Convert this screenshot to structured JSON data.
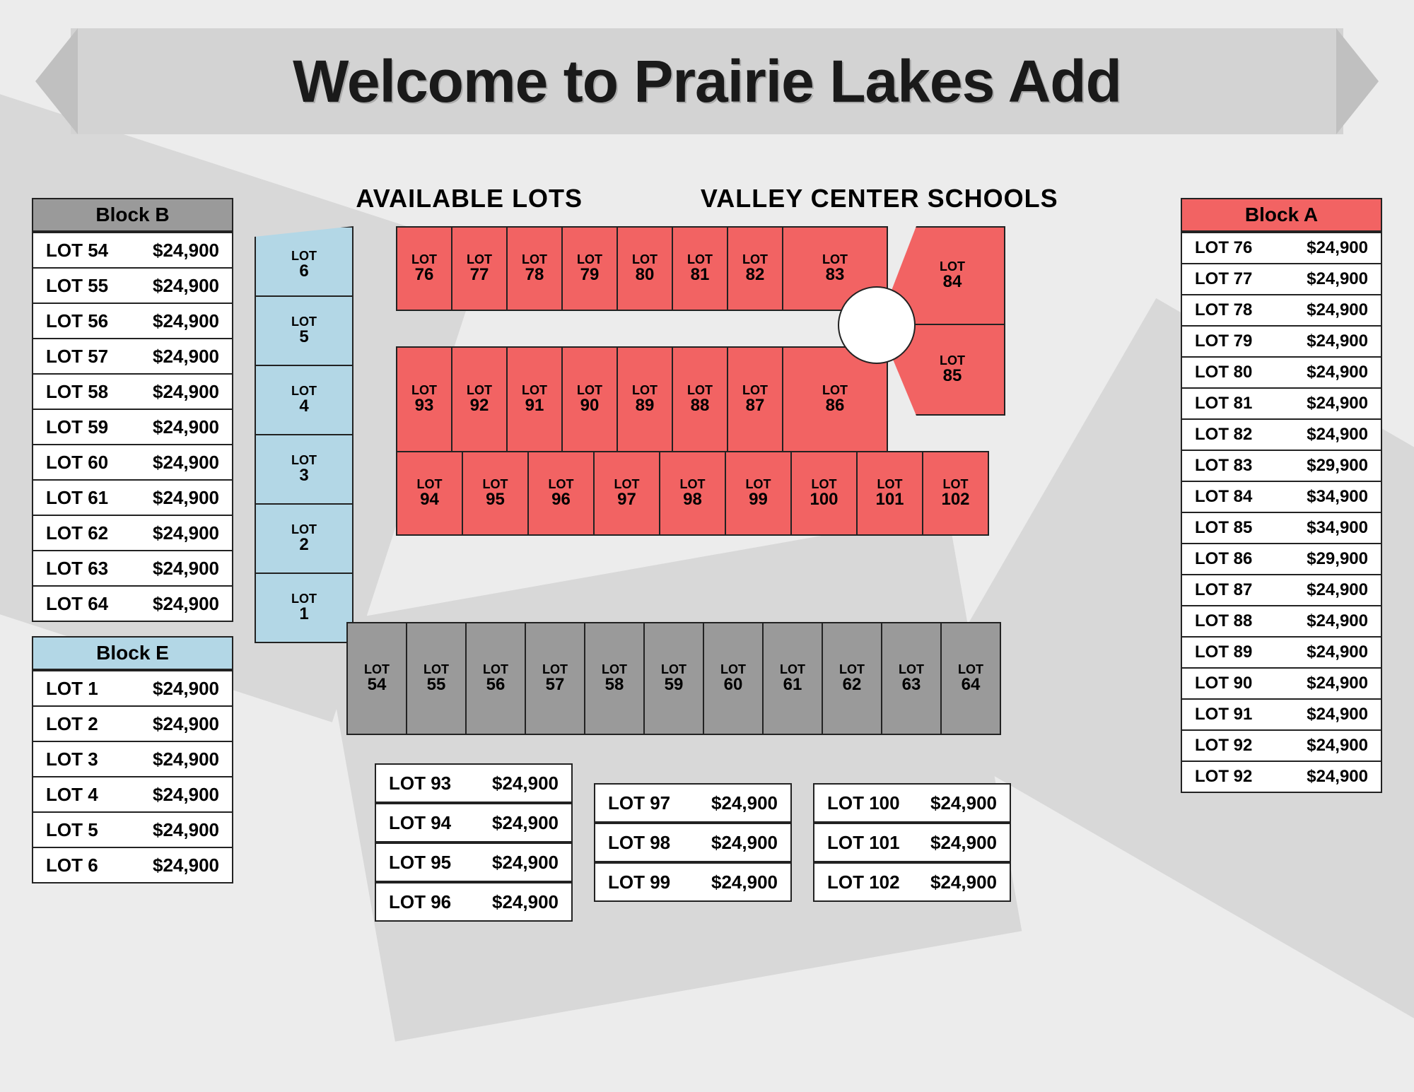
{
  "title": "Welcome to Prairie Lakes Add",
  "subheads": {
    "left": "AVAILABLE LOTS",
    "right": "VALLEY CENTER SCHOOLS"
  },
  "colors": {
    "red": "#f26363",
    "blue": "#b3d7e6",
    "grey": "#9a9a9a",
    "border": "#222222",
    "background": "#ececec",
    "white": "#ffffff"
  },
  "blocks": {
    "B": {
      "label": "Block B",
      "header_color": "grey",
      "rows": [
        {
          "lot": "LOT 54",
          "price": "$24,900"
        },
        {
          "lot": "LOT 55",
          "price": "$24,900"
        },
        {
          "lot": "LOT 56",
          "price": "$24,900"
        },
        {
          "lot": "LOT 57",
          "price": "$24,900"
        },
        {
          "lot": "LOT 58",
          "price": "$24,900"
        },
        {
          "lot": "LOT 59",
          "price": "$24,900"
        },
        {
          "lot": "LOT 60",
          "price": "$24,900"
        },
        {
          "lot": "LOT 61",
          "price": "$24,900"
        },
        {
          "lot": "LOT 62",
          "price": "$24,900"
        },
        {
          "lot": "LOT 63",
          "price": "$24,900"
        },
        {
          "lot": "LOT 64",
          "price": "$24,900"
        }
      ]
    },
    "E": {
      "label": "Block E",
      "header_color": "blue",
      "rows": [
        {
          "lot": "LOT 1",
          "price": "$24,900"
        },
        {
          "lot": "LOT 2",
          "price": "$24,900"
        },
        {
          "lot": "LOT 3",
          "price": "$24,900"
        },
        {
          "lot": "LOT 4",
          "price": "$24,900"
        },
        {
          "lot": "LOT 5",
          "price": "$24,900"
        },
        {
          "lot": "LOT 6",
          "price": "$24,900"
        }
      ]
    },
    "A": {
      "label": "Block A",
      "header_color": "red",
      "rows": [
        {
          "lot": "LOT 76",
          "price": "$24,900"
        },
        {
          "lot": "LOT 77",
          "price": "$24,900"
        },
        {
          "lot": "LOT 78",
          "price": "$24,900"
        },
        {
          "lot": "LOT 79",
          "price": "$24,900"
        },
        {
          "lot": "LOT 80",
          "price": "$24,900"
        },
        {
          "lot": "LOT 81",
          "price": "$24,900"
        },
        {
          "lot": "LOT 82",
          "price": "$24,900"
        },
        {
          "lot": "LOT 83",
          "price": "$29,900"
        },
        {
          "lot": "LOT 84",
          "price": "$34,900"
        },
        {
          "lot": "LOT 85",
          "price": "$34,900"
        },
        {
          "lot": "LOT 86",
          "price": "$29,900"
        },
        {
          "lot": "LOT 87",
          "price": "$24,900"
        },
        {
          "lot": "LOT 88",
          "price": "$24,900"
        },
        {
          "lot": "LOT 89",
          "price": "$24,900"
        },
        {
          "lot": "LOT 90",
          "price": "$24,900"
        },
        {
          "lot": "LOT 91",
          "price": "$24,900"
        },
        {
          "lot": "LOT 92",
          "price": "$24,900"
        },
        {
          "lot": "LOT 92",
          "price": "$24,900"
        }
      ]
    }
  },
  "bottom_tables": [
    [
      {
        "lot": "LOT 93",
        "price": "$24,900"
      },
      {
        "lot": "LOT 94",
        "price": "$24,900"
      },
      {
        "lot": "LOT 95",
        "price": "$24,900"
      },
      {
        "lot": "LOT 96",
        "price": "$24,900"
      }
    ],
    [
      {
        "lot": "LOT 97",
        "price": "$24,900"
      },
      {
        "lot": "LOT 98",
        "price": "$24,900"
      },
      {
        "lot": "LOT 99",
        "price": "$24,900"
      }
    ],
    [
      {
        "lot": "LOT 100",
        "price": "$24,900"
      },
      {
        "lot": "LOT 101",
        "price": "$24,900"
      },
      {
        "lot": "LOT 102",
        "price": "$24,900"
      }
    ]
  ],
  "map": {
    "lot_word": "LOT",
    "blue_lots": [
      "6",
      "5",
      "4",
      "3",
      "2",
      "1"
    ],
    "red_top": [
      "76",
      "77",
      "78",
      "79",
      "80",
      "81",
      "82"
    ],
    "red_top_wide": "83",
    "red_corner": [
      "84",
      "85"
    ],
    "red_mid": [
      "93",
      "92",
      "91",
      "90",
      "89",
      "88",
      "87"
    ],
    "red_mid_wide": "86",
    "red_bottom": [
      "94",
      "95",
      "96",
      "97",
      "98",
      "99",
      "100",
      "101",
      "102"
    ],
    "grey_lots": [
      "54",
      "55",
      "56",
      "57",
      "58",
      "59",
      "60",
      "61",
      "62",
      "63",
      "64"
    ]
  }
}
